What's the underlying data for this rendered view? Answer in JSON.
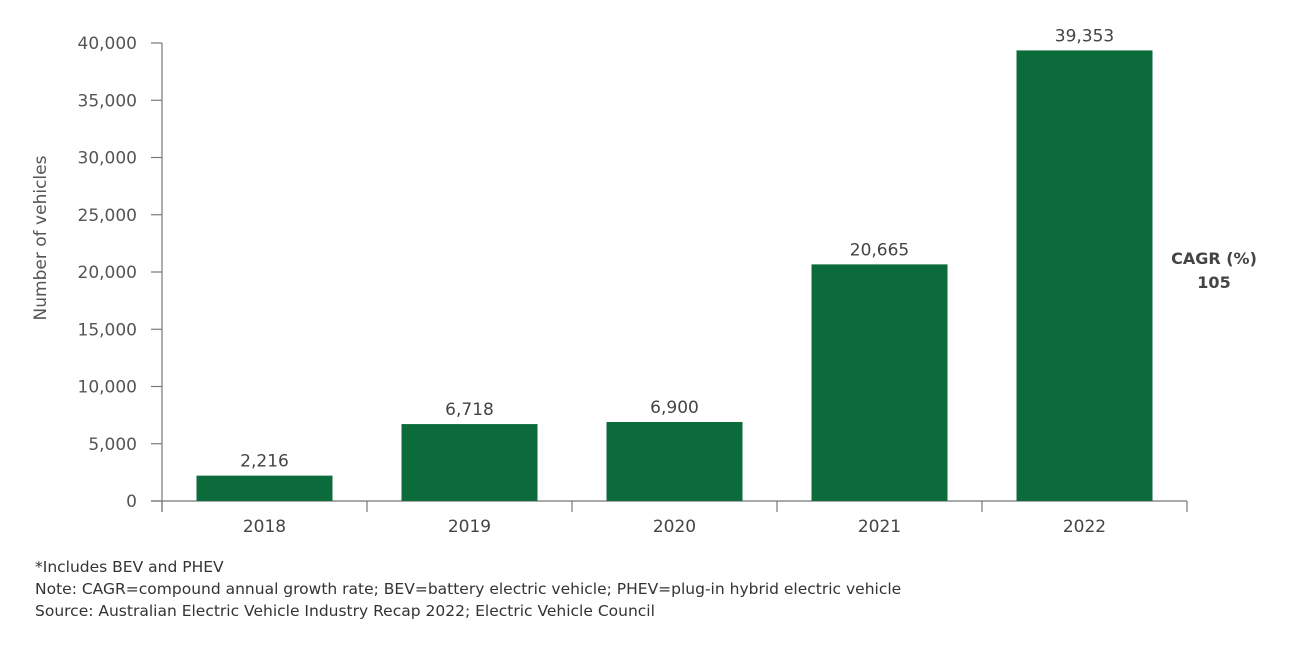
{
  "chart_data": {
    "type": "bar",
    "categories": [
      "2018",
      "2019",
      "2020",
      "2021",
      "2022"
    ],
    "values": [
      2216,
      6718,
      6900,
      20665,
      39353
    ],
    "data_labels": [
      "2,216",
      "6,718",
      "6,900",
      "20,665",
      "39,353"
    ],
    "ylabel": "Number of vehicles",
    "xlabel": "",
    "ylim": [
      0,
      40000
    ],
    "yticks": [
      0,
      5000,
      10000,
      15000,
      20000,
      25000,
      30000,
      35000,
      40000
    ],
    "ytick_labels": [
      "0",
      "5,000",
      "10,000",
      "15,000",
      "20,000",
      "25,000",
      "30,000",
      "35,000",
      "40,000"
    ],
    "grid": false,
    "bar_color": "#0b6b3a",
    "annotation": {
      "title": "CAGR (%)",
      "value": "105"
    }
  },
  "notes": [
    "*Includes BEV and PHEV",
    "Note: CAGR=compound annual growth rate; BEV=battery electric vehicle; PHEV=plug-in hybrid electric vehicle",
    "Source: Australian Electric Vehicle Industry Recap 2022; Electric Vehicle Council"
  ]
}
